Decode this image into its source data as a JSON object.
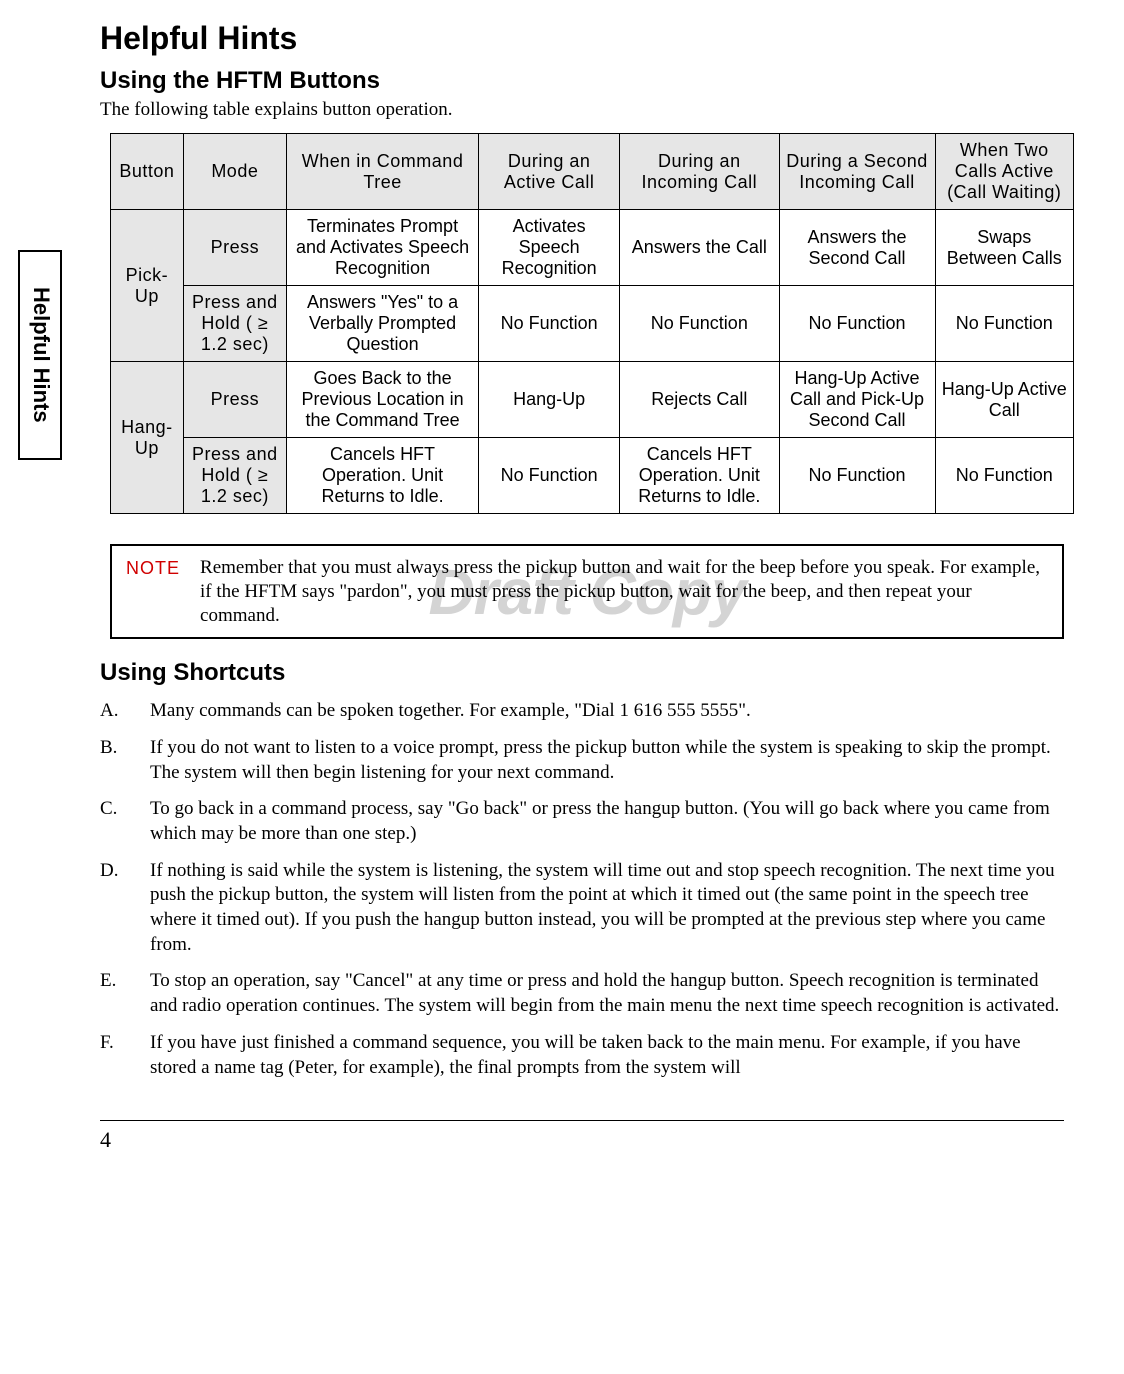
{
  "sideTab": "Helpful Hints",
  "title": "Helpful Hints",
  "section1": {
    "heading": "Using the HFTM Buttons",
    "intro": "The following table explains button operation."
  },
  "table": {
    "headers": [
      "Button",
      "Mode",
      "When in Command Tree",
      "During an Active Call",
      "During an Incoming Call",
      "During a Second Incoming Call",
      "When Two Calls Active (Call Waiting)"
    ],
    "rows": [
      {
        "button": "Pick-Up",
        "mode": "Press",
        "c1": "Terminates Prompt and Activates Speech Recognition",
        "c2": "Activates Speech Recognition",
        "c3": "Answers the Call",
        "c4": "Answers the Second Call",
        "c5": "Swaps Between Calls"
      },
      {
        "mode": "Press and Hold ( ≥ 1.2 sec)",
        "c1": "Answers \"Yes\" to a Verbally Prompted Question",
        "c2": "No Function",
        "c3": "No Function",
        "c4": "No Function",
        "c5": "No Function"
      },
      {
        "button": "Hang-Up",
        "mode": "Press",
        "c1": "Goes Back to the Previous Location in the Command Tree",
        "c2": "Hang-Up",
        "c3": "Rejects Call",
        "c4": "Hang-Up Active Call and Pick-Up Second Call",
        "c5": "Hang-Up Active Call"
      },
      {
        "mode": "Press and Hold ( ≥ 1.2 sec)",
        "c1": "Cancels HFT Operation. Unit Returns to Idle.",
        "c2": "No Function",
        "c3": "Cancels HFT Operation. Unit Returns to Idle.",
        "c4": "No Function",
        "c5": "No Function"
      }
    ]
  },
  "note": {
    "label": "NOTE",
    "text": "Remember that you must always press the pickup button and wait for the beep before you speak. For example, if the HFTM says \"pardon\", you must press the pickup button, wait for the beep, and then repeat your command.",
    "watermark": "Draft Copy"
  },
  "section2": {
    "heading": "Using Shortcuts",
    "items": [
      {
        "letter": "A.",
        "text": "Many commands can be spoken together. For example, \"Dial 1 616 555 5555\"."
      },
      {
        "letter": "B.",
        "text": "If you do not want to listen to a voice prompt, press the pickup button while the system is speaking to skip the prompt. The system will then begin listening for your next command."
      },
      {
        "letter": "C.",
        "text": "To go back in a command process, say \"Go back\" or press the hangup button. (You will go back where you came from which may be more than one step.)"
      },
      {
        "letter": "D.",
        "text": "If nothing is said while the system is listening, the system will time out and stop speech recognition. The next time you push the pickup button, the system will listen from the point at which it timed out (the same point in the speech tree where it timed out). If you push the hangup button instead, you will be prompted at the previous step where you came from."
      },
      {
        "letter": "E.",
        "text": "To stop an operation, say \"Cancel\" at any time or press and hold the hangup button. Speech recognition is terminated and radio operation continues. The system will begin from the main menu the next time speech recognition is activated."
      },
      {
        "letter": "F.",
        "text": "If you have just finished a command sequence, you will be taken back to the main menu. For example, if you have stored a name tag (Peter, for example), the final prompts from the system will"
      }
    ]
  },
  "pageNumber": "4"
}
